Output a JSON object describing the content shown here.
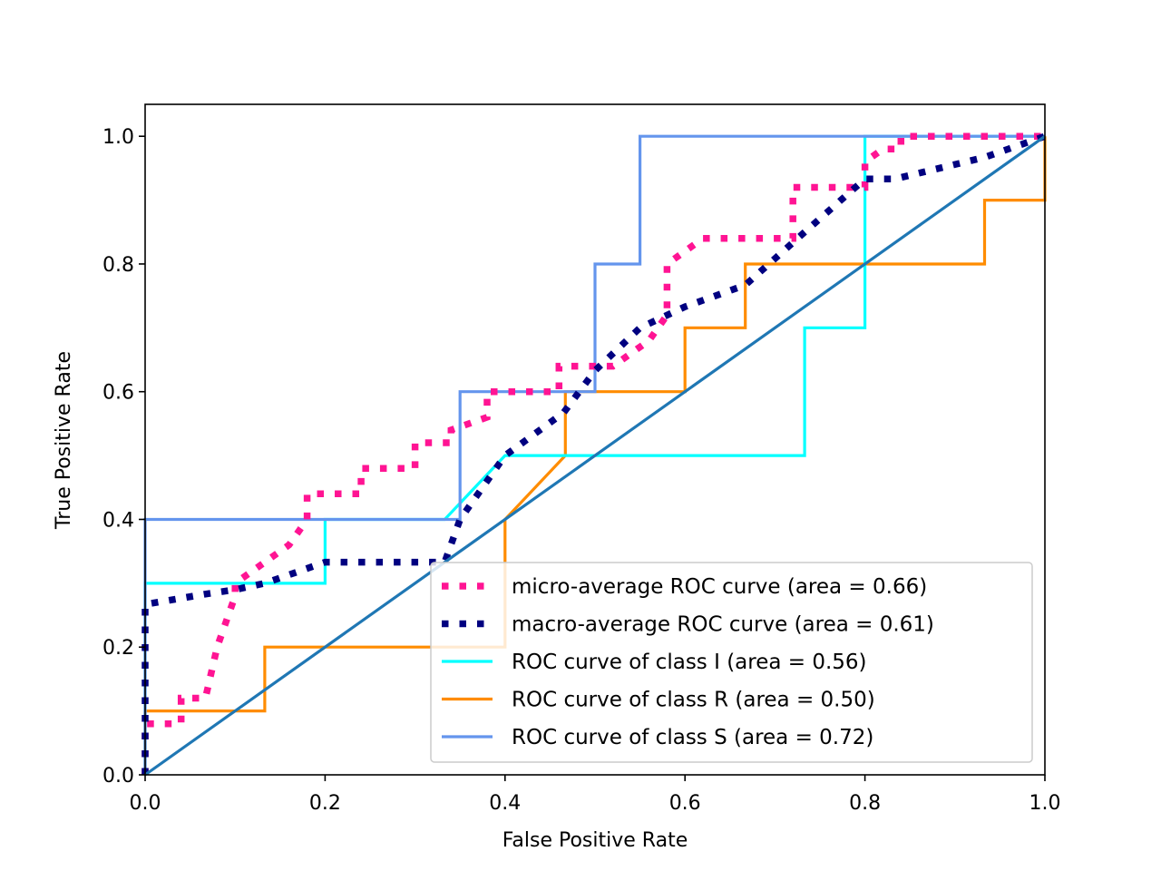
{
  "chart_data": {
    "type": "line",
    "title": "",
    "xlabel": "False Positive Rate",
    "ylabel": "True Positive Rate",
    "xlim": [
      0.0,
      1.0
    ],
    "ylim": [
      0.0,
      1.05
    ],
    "xticks": [
      0.0,
      0.2,
      0.4,
      0.6,
      0.8,
      1.0
    ],
    "yticks": [
      0.0,
      0.2,
      0.4,
      0.6,
      0.8,
      1.0
    ],
    "xtick_labels": [
      "0.0",
      "0.2",
      "0.4",
      "0.6",
      "0.8",
      "1.0"
    ],
    "ytick_labels": [
      "0.0",
      "0.2",
      "0.4",
      "0.6",
      "0.8",
      "1.0"
    ],
    "grid": false,
    "legend_position": "lower-right",
    "series": [
      {
        "name": "micro-average ROC curve (area = 0.66)",
        "color": "#ff1493",
        "style": "dotted",
        "x": [
          0.0,
          0.0,
          0.04,
          0.04,
          0.067,
          0.08,
          0.1,
          0.1,
          0.12,
          0.16,
          0.18,
          0.18,
          0.24,
          0.24,
          0.3,
          0.3,
          0.34,
          0.34,
          0.38,
          0.38,
          0.44,
          0.46,
          0.46,
          0.5,
          0.52,
          0.56,
          0.56,
          0.58,
          0.58,
          0.62,
          0.72,
          0.72,
          0.8,
          0.8,
          0.82,
          0.84,
          0.84,
          1.0
        ],
        "y": [
          0.0,
          0.08,
          0.08,
          0.12,
          0.12,
          0.2,
          0.28,
          0.3,
          0.32,
          0.36,
          0.4,
          0.44,
          0.44,
          0.48,
          0.48,
          0.52,
          0.52,
          0.54,
          0.56,
          0.6,
          0.6,
          0.6,
          0.64,
          0.64,
          0.64,
          0.68,
          0.68,
          0.72,
          0.8,
          0.84,
          0.84,
          0.92,
          0.92,
          0.96,
          0.98,
          0.98,
          1.0,
          1.0
        ]
      },
      {
        "name": "macro-average ROC curve (area = 0.61)",
        "color": "#000080",
        "style": "dotted",
        "x": [
          0.0,
          0.0,
          0.067,
          0.1,
          0.133,
          0.2,
          0.333,
          0.35,
          0.4,
          0.465,
          0.5,
          0.55,
          0.6,
          0.667,
          0.733,
          0.8,
          0.833,
          0.933,
          1.0
        ],
        "y": [
          0.0,
          0.267,
          0.283,
          0.29,
          0.3,
          0.333,
          0.333,
          0.4,
          0.5,
          0.567,
          0.633,
          0.7,
          0.733,
          0.767,
          0.85,
          0.933,
          0.933,
          0.967,
          1.0
        ]
      },
      {
        "name": "ROC curve of class I (area = 0.56)",
        "color": "#00ffff",
        "style": "solid",
        "x": [
          0.0,
          0.0,
          0.2,
          0.2,
          0.333,
          0.4,
          0.733,
          0.733,
          0.8,
          0.8,
          1.0
        ],
        "y": [
          0.0,
          0.3,
          0.3,
          0.4,
          0.4,
          0.5,
          0.5,
          0.7,
          0.7,
          1.0,
          1.0
        ]
      },
      {
        "name": "ROC curve of class R (area = 0.50)",
        "color": "#ff8c00",
        "style": "solid",
        "x": [
          0.0,
          0.0,
          0.133,
          0.133,
          0.4,
          0.4,
          0.467,
          0.467,
          0.6,
          0.6,
          0.667,
          0.667,
          0.933,
          0.933,
          1.0,
          1.0
        ],
        "y": [
          0.0,
          0.1,
          0.1,
          0.2,
          0.2,
          0.4,
          0.5,
          0.6,
          0.6,
          0.7,
          0.7,
          0.8,
          0.8,
          0.9,
          0.9,
          1.0
        ]
      },
      {
        "name": "ROC curve of class S (area = 0.72)",
        "color": "#6495ed",
        "style": "solid",
        "x": [
          0.0,
          0.0,
          0.35,
          0.35,
          0.5,
          0.5,
          0.55,
          0.55,
          1.0
        ],
        "y": [
          0.0,
          0.4,
          0.4,
          0.6,
          0.6,
          0.8,
          0.8,
          1.0,
          1.0
        ]
      },
      {
        "name": "",
        "color": "#1f77b4",
        "style": "solid",
        "x": [
          0.0,
          1.0
        ],
        "y": [
          0.0,
          1.0
        ]
      }
    ]
  }
}
